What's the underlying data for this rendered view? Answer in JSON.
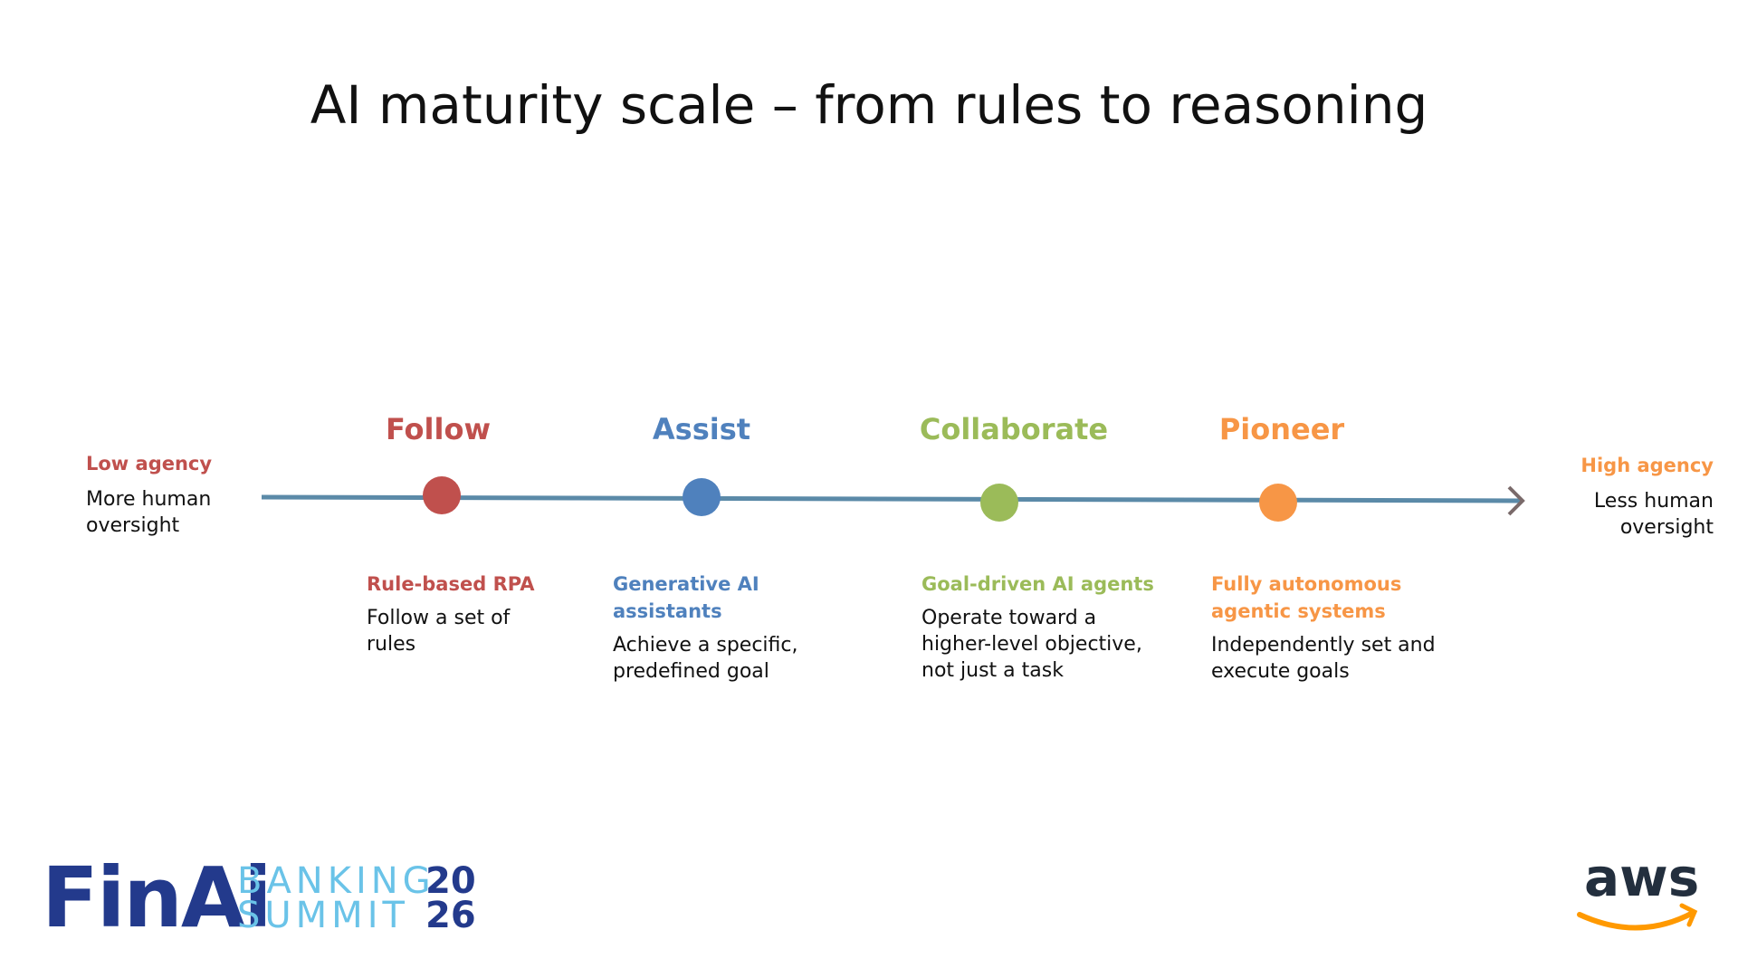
{
  "title": "AI maturity scale – from rules to reasoning",
  "start": {
    "label": "Low agency",
    "description": [
      "More human",
      "oversight"
    ]
  },
  "end": {
    "label": "High agency",
    "description": [
      "Less human",
      "oversight"
    ]
  },
  "stages": [
    {
      "name": "Follow",
      "subtitle": [
        "Rule-based RPA"
      ],
      "description": [
        "Follow a set of",
        "rules"
      ]
    },
    {
      "name": "Assist",
      "subtitle": [
        "Generative AI",
        "assistants"
      ],
      "description": [
        "Achieve a specific,",
        "predefined goal"
      ]
    },
    {
      "name": "Collaborate",
      "subtitle": [
        "Goal-driven AI agents"
      ],
      "description": [
        "Operate toward a",
        "higher-level objective,",
        "not just a task"
      ]
    },
    {
      "name": "Pioneer",
      "subtitle": [
        "Fully autonomous",
        "agentic systems"
      ],
      "description": [
        "Independently set and",
        "execute goals"
      ]
    }
  ],
  "logos": {
    "event": {
      "brand": "FinAi",
      "line1": "BANKING",
      "line2": "SUMMIT",
      "year1": "20",
      "year2": "26"
    },
    "sponsor": "aws"
  }
}
